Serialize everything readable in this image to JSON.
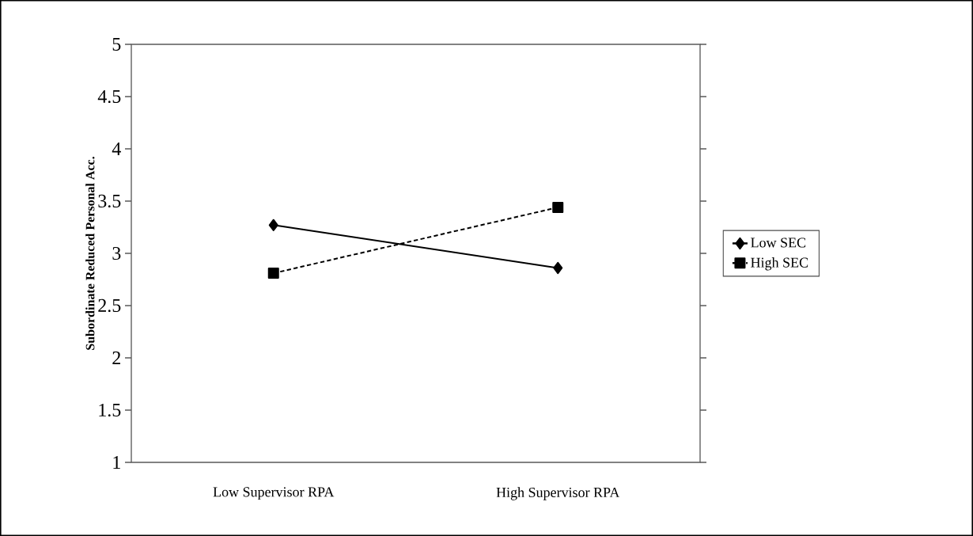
{
  "chart_data": {
    "type": "line",
    "ylabel": "Subordinate Reduced Personal Acc.",
    "categories": [
      "Low Supervisor RPA",
      "High Supervisor RPA"
    ],
    "series": [
      {
        "name": "Low SEC",
        "color": "#000000",
        "values": [
          3.27,
          2.86
        ],
        "marker": "diamond",
        "line_style": "solid"
      },
      {
        "name": "High SEC",
        "color": "#000000",
        "values": [
          2.81,
          3.44
        ],
        "marker": "square",
        "line_style": "dashed"
      }
    ],
    "ylim": [
      1,
      5
    ],
    "yticks": [
      1,
      1.5,
      2,
      2.5,
      3,
      3.5,
      4,
      4.5,
      5
    ],
    "legend": "right"
  }
}
